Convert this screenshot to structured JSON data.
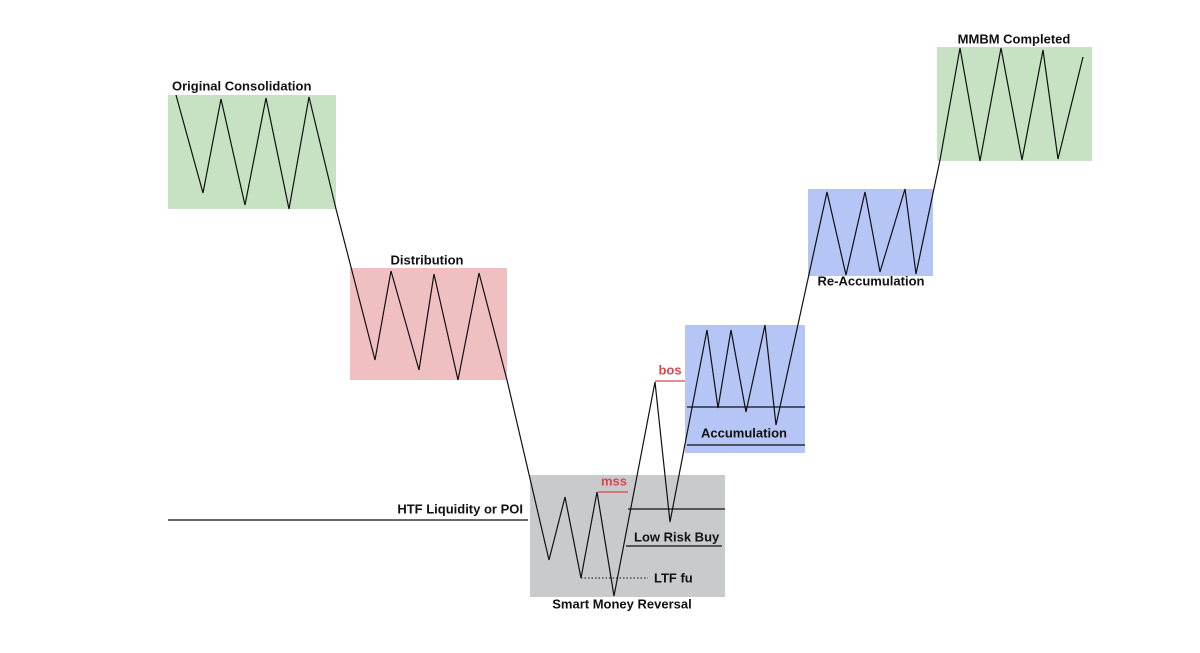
{
  "labels": {
    "original_consolidation": "Original Consolidation",
    "distribution": "Distribution",
    "htf_liquidity": "HTF Liquidity or POI",
    "mss": "mss",
    "bos": "bos",
    "low_risk_buy": "Low Risk Buy",
    "ltf_fu": "LTF fu",
    "smart_money_reversal": "Smart Money Reversal",
    "accumulation": "Accumulation",
    "re_accumulation": "Re-Accumulation",
    "mmbm_completed": "MMBM Completed"
  }
}
